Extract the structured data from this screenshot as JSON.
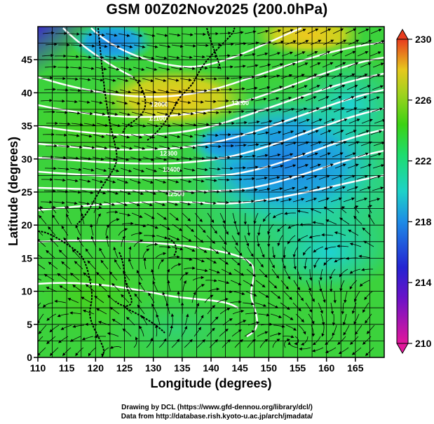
{
  "title": "GSM 00Z02Nov2025 (200.0hPa)",
  "xlabel": "Longitude (degrees)",
  "ylabel": "Latitude  (degrees)",
  "credits": {
    "line1": "Drawing by DCL (https://www.gfd-dennou.org/library/dcl/)",
    "line2": "Data from http://database.rish.kyoto-u.ac.jp/arch/jmadata/"
  },
  "map": {
    "lon_range": [
      110,
      170
    ],
    "lat_range": [
      0,
      50
    ],
    "x_ticks": [
      110,
      115,
      120,
      125,
      130,
      135,
      140,
      145,
      150,
      155,
      160,
      165
    ],
    "y_ticks": [
      0,
      5,
      10,
      15,
      20,
      25,
      30,
      35,
      40,
      45
    ],
    "grid": true,
    "contour_labels": [
      "12000",
      "12100",
      "12200",
      "12300",
      "12400",
      "12500"
    ]
  },
  "colorbar": {
    "range": [
      210,
      230
    ],
    "tick_labels": [
      "230",
      "226",
      "222",
      "218",
      "214",
      "210"
    ],
    "colors": [
      "#e2189b",
      "#2824c8",
      "#1ecdd2",
      "#3cd214",
      "#c8d21e",
      "#e83c1e"
    ]
  }
}
